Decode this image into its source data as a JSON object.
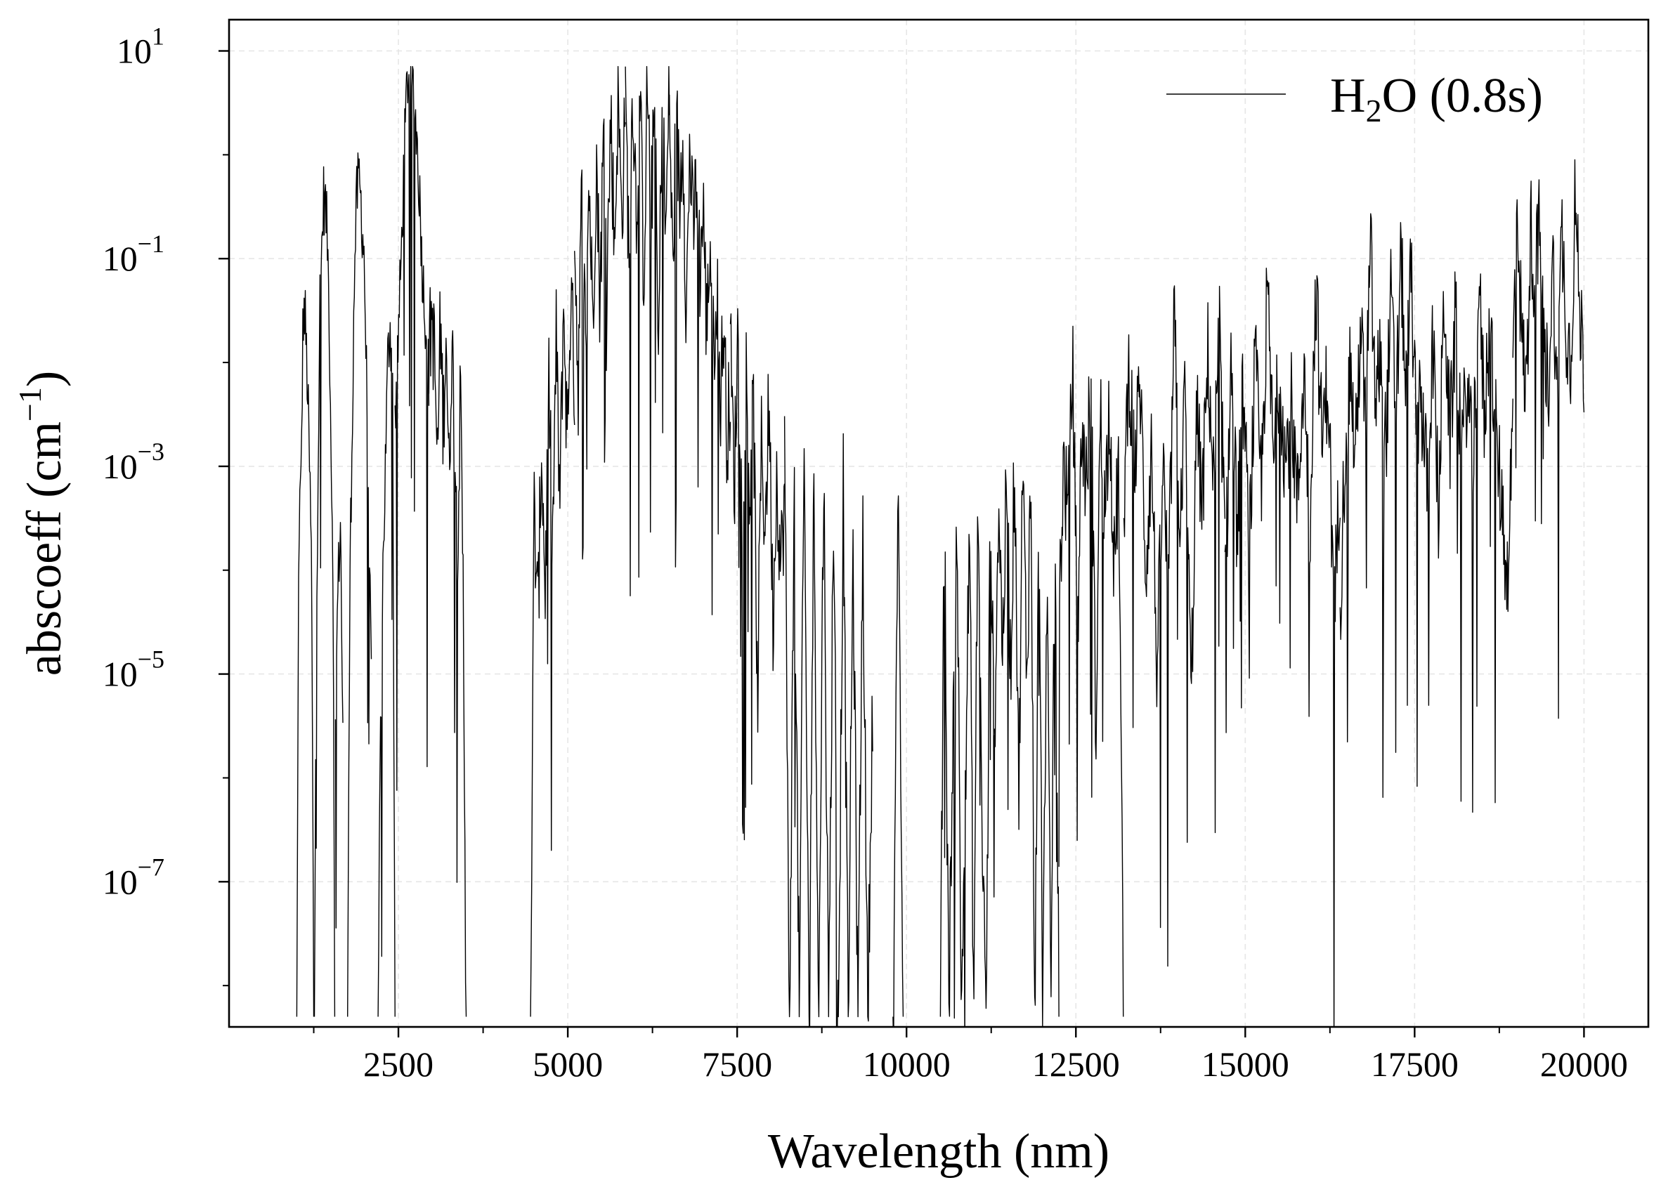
{
  "chart_data": {
    "type": "line",
    "title": "",
    "xlabel": "Wavelength (nm)",
    "ylabel_parts": {
      "main": "abscoeff (cm",
      "sup": "−1",
      "close": ")"
    },
    "xlim": [
      0,
      20950
    ],
    "ylim": [
      4e-09,
      20
    ],
    "yscale": "log",
    "grid": true,
    "legend_position": "top-right",
    "x_ticks_major": [
      2500,
      5000,
      7500,
      10000,
      12500,
      15000,
      17500,
      20000
    ],
    "x_ticks_major_labels": [
      "2500",
      "5000",
      "7500",
      "10000",
      "12500",
      "15000",
      "17500",
      "20000"
    ],
    "x_ticks_minor": [
      1250,
      3750,
      6250,
      8750,
      11250,
      13750,
      16250,
      18750
    ],
    "y_ticks": [
      {
        "value": 10,
        "base": "10",
        "exp": "1"
      },
      {
        "value": 0.1,
        "base": "10",
        "exp": "−1"
      },
      {
        "value": 0.001,
        "base": "10",
        "exp": "−3"
      },
      {
        "value": 1e-05,
        "base": "10",
        "exp": "−5"
      },
      {
        "value": 1e-07,
        "base": "10",
        "exp": "−7"
      }
    ],
    "line_color": "#000000",
    "series": [
      {
        "legend": {
          "pre": "H",
          "sub": "2",
          "post": "O (0.8s)"
        },
        "segments": [
          {
            "x0": 1000,
            "x1": 1250,
            "logy": [
              -8.3,
              -3.5,
              -3.2,
              -1.5,
              -1.6,
              -2.2,
              -3.0,
              -4.0,
              -8.3
            ]
          },
          {
            "x0": 1260,
            "x1": 1560,
            "logy": [
              -8.3,
              -4.5,
              -3.0,
              -1.4,
              -0.9,
              -0.4,
              -0.5,
              -0.8,
              -1.5,
              -2.8,
              -3.8,
              -8.3
            ]
          },
          {
            "x0": 1570,
            "x1": 1680,
            "logy": [
              -5.5,
              -4.2,
              -3.5,
              -5.5
            ]
          },
          {
            "x0": 1750,
            "x1": 2100,
            "logy": [
              -8.3,
              -4.0,
              -2.5,
              -1.0,
              -0.35,
              -0.25,
              -0.6,
              -1.0,
              -2.2,
              -3.5,
              -5.2
            ]
          },
          {
            "x0": 2200,
            "x1": 2450,
            "logy": [
              -8.3,
              -5.5,
              -4.0,
              -3.0,
              -2.0,
              -1.6,
              -2.3,
              -8.3
            ]
          },
          {
            "x0": 2450,
            "x1": 2950,
            "logy": [
              -2.5,
              -1.8,
              -1.0,
              0.0,
              0.75,
              0.8,
              0.6,
              0.2,
              -0.4,
              -1.2,
              -1.6,
              -2.2
            ]
          },
          {
            "x0": 2950,
            "x1": 3500,
            "logy": [
              -2.0,
              -1.5,
              -2.0,
              -3.0,
              -1.6,
              -2.6,
              -1.6,
              -3.2,
              -1.7,
              -2.8,
              -3.6,
              -2.4,
              -4.3,
              -8.3
            ]
          },
          {
            "x0": 4450,
            "x1": 5100,
            "logy": [
              -8.3,
              -3.4,
              -4.5,
              -2.8,
              -4.2,
              -2.2,
              -3.8,
              -1.8,
              -3.4,
              -1.4,
              -2.8,
              -1.3,
              -2.2
            ]
          },
          {
            "x0": 5100,
            "x1": 5850,
            "logy": [
              -0.7,
              -2.2,
              -0.4,
              -1.8,
              -0.2,
              -1.6,
              0.0,
              -1.4,
              0.2,
              -1.1,
              0.4,
              -0.9,
              0.6,
              -0.7,
              0.7
            ]
          },
          {
            "x0": 5850,
            "x1": 6500,
            "logy": [
              0.6,
              -1.0,
              0.7,
              -0.6,
              0.6,
              -1.2,
              0.7,
              -0.6,
              0.5,
              -2.1,
              0.6,
              -0.8,
              0.7
            ]
          },
          {
            "x0": 6500,
            "x1": 7400,
            "logy": [
              0.5,
              -1.2,
              0.5,
              -0.5,
              0.3,
              -1.6,
              0.1,
              -0.8,
              -0.2,
              -1.1,
              -0.5,
              -1.7,
              -0.8,
              -1.9,
              -1.2,
              -2.4,
              -1.6,
              -2.7,
              -2.3
            ]
          },
          {
            "x0": 7400,
            "x1": 8200,
            "logy": [
              -1.8,
              -3.2,
              -1.6,
              -3.5,
              -2.0,
              -3.3,
              -2.4,
              -5.3,
              -2.8,
              -3.6,
              -2.3,
              -4.5,
              -3.0,
              -4.0,
              -3.3
            ]
          },
          {
            "x0": 8200,
            "x1": 9500,
            "logy": [
              -2.7,
              -8.3,
              -3.3,
              -8.3,
              -2.9,
              -8.3,
              -3.2,
              -8.3,
              -3.0,
              -8.3,
              -3.4,
              -8.3,
              -3.2,
              -8.3,
              -3.8,
              -8.3,
              -3.6,
              -8.3,
              -5.2
            ]
          },
          {
            "x0": 9800,
            "x1": 9950,
            "logy": [
              -8.3,
              -3.3,
              -8.3
            ]
          },
          {
            "x0": 10500,
            "x1": 11300,
            "logy": [
              -8.3,
              -3.3,
              -8.3,
              -5.5,
              -3.4,
              -8.3,
              -6.0,
              -3.6,
              -8.3,
              -3.2,
              -6.5,
              -8.3,
              -3.3,
              -6.0
            ]
          },
          {
            "x0": 11300,
            "x1": 12250,
            "logy": [
              -5.5,
              -3.3,
              -4.8,
              -3.1,
              -5.0,
              -2.8,
              -6.2,
              -3.0,
              -5.0,
              -3.1,
              -8.3,
              -3.5,
              -8.3,
              -4.0,
              -8.3,
              -3.2,
              -8.3
            ]
          },
          {
            "x0": 12250,
            "x1": 13200,
            "logy": [
              -4.4,
              -3.0,
              -3.5,
              -2.0,
              -4.7,
              -2.6,
              -3.2,
              -2.0,
              -5.6,
              -2.5,
              -3.5,
              -2.3,
              -4.0,
              -3.0,
              -8.3
            ]
          },
          {
            "x0": 13200,
            "x1": 14700,
            "logy": [
              -3.5,
              -2.0,
              -3.0,
              -2.2,
              -4.0,
              -2.8,
              -5.0,
              -3.0,
              -4.3,
              -1.6,
              -3.5,
              -2.3,
              -5.3,
              -2.5,
              -3.4,
              -1.9,
              -3.2,
              -1.7,
              -3.7
            ]
          },
          {
            "x0": 14700,
            "x1": 16400,
            "logy": [
              -4.3,
              -2.0,
              -3.6,
              -2.3,
              -3.8,
              -2.0,
              -3.2,
              -1.3,
              -3.0,
              -2.0,
              -3.0,
              -2.4,
              -3.4,
              -2.0,
              -3.6,
              -1.2,
              -2.8,
              -2.1,
              -4.5,
              -3.0
            ]
          },
          {
            "x0": 16400,
            "x1": 17600,
            "logy": [
              -4.3,
              -2.8,
              -2.0,
              -3.0,
              -1.6,
              -2.6,
              -0.9,
              -2.5,
              -1.8,
              -2.8,
              -1.4,
              -2.5,
              -1.0,
              -2.3,
              -1.1,
              -2.8,
              -2.0
            ]
          },
          {
            "x0": 17600,
            "x1": 18950,
            "logy": [
              -2.4,
              -3.2,
              -1.8,
              -3.5,
              -1.3,
              -2.8,
              -1.5,
              -2.9,
              -2.2,
              -3.1,
              -1.2,
              -2.5,
              -1.6,
              -2.7,
              -3.3,
              -4.1,
              -2.6
            ]
          },
          {
            "x0": 18950,
            "x1": 20000,
            "logy": [
              -2.0,
              -0.4,
              -1.8,
              -2.3,
              -0.7,
              -1.2,
              -0.7,
              -1.9,
              -2.2,
              -1.0,
              -2.4,
              -0.7,
              -1.6,
              -2.0,
              -0.4,
              -1.5,
              -2.0
            ]
          }
        ]
      }
    ]
  }
}
